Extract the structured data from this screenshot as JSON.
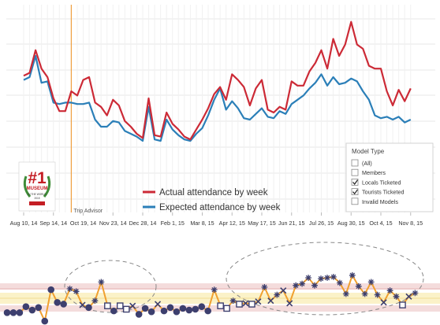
{
  "chart_data": [
    {
      "type": "line",
      "x_tick_labels": [
        "Aug 10, 14",
        "Sep 14, 14",
        "Oct 19, 14",
        "Nov 23, 14",
        "Dec 28, 14",
        "Feb 1, 15",
        "Mar 8, 15",
        "Apr 12, 15",
        "May 17, 15",
        "Jun 21, 15",
        "Jul 26, 15",
        "Aug 30, 15",
        "Oct 4, 15",
        "Nov 8, 15"
      ],
      "weeks_count": 66,
      "grid": true,
      "series": [
        {
          "name": "Actual attendance by week",
          "color": "#cc2a36",
          "values": [
            61,
            63,
            79,
            66,
            60,
            45,
            36,
            36,
            50,
            47,
            58,
            60,
            42,
            39,
            33,
            44,
            40,
            29,
            25,
            20,
            17,
            45,
            19,
            18,
            35,
            27,
            23,
            18,
            16,
            23,
            30,
            38,
            48,
            53,
            44,
            62,
            58,
            53,
            40,
            52,
            58,
            37,
            35,
            39,
            37,
            57,
            54,
            54,
            64,
            70,
            79,
            66,
            87,
            75,
            83,
            99,
            83,
            80,
            68,
            66,
            66,
            50,
            40,
            51,
            43,
            52
          ]
        },
        {
          "name": "Expected attendance by week",
          "color": "#2b7fb8",
          "values": [
            58,
            60,
            75,
            56,
            57,
            42,
            41,
            42,
            42,
            41,
            41,
            42,
            30,
            25,
            25,
            29,
            28,
            22,
            20,
            18,
            15,
            39,
            16,
            15,
            30,
            23,
            19,
            16,
            15,
            20,
            24,
            33,
            44,
            52,
            37,
            43,
            38,
            31,
            30,
            34,
            38,
            32,
            31,
            36,
            34,
            41,
            44,
            47,
            52,
            56,
            62,
            54,
            60,
            55,
            56,
            59,
            57,
            50,
            44,
            33,
            31,
            32,
            30,
            32,
            28,
            30
          ]
        }
      ],
      "annotations": [
        {
          "text": "Trip Advisor",
          "week": 8
        }
      ],
      "legend": {
        "position": "bottom-center",
        "entries": [
          "Actual attendance by week",
          "Expected attendance by week"
        ]
      },
      "filter_panel": {
        "title": "Model Type",
        "items": [
          {
            "label": "(All)",
            "checked": false
          },
          {
            "label": "Members",
            "checked": false
          },
          {
            "label": "Locals Ticketed",
            "checked": true
          },
          {
            "label": "Tourists Ticketed",
            "checked": true
          },
          {
            "label": "Invalid Models",
            "checked": false
          }
        ]
      },
      "logo": {
        "text": [
          "MUSEUM",
          "IN THE WORLD",
          "2015"
        ],
        "numeral": "#1"
      }
    },
    {
      "type": "line",
      "description": "control chart of weekly residuals",
      "bands": [
        "outer-pink",
        "inner-pink",
        "yellow-center"
      ],
      "highlighted_regions": 2,
      "points": [
        {
          "v": -1.6,
          "m": "dot"
        },
        {
          "v": -1.6,
          "m": "dot"
        },
        {
          "v": -1.6,
          "m": "dot"
        },
        {
          "v": -0.9,
          "m": "dot"
        },
        {
          "v": -1.3,
          "m": "dot"
        },
        {
          "v": -1.0,
          "m": "dot"
        },
        {
          "v": -2.6,
          "m": "dot"
        },
        {
          "v": 1.1,
          "m": "dot"
        },
        {
          "v": -0.4,
          "m": "dot"
        },
        {
          "v": -0.6,
          "m": "dot"
        },
        {
          "v": 1.2,
          "m": "star"
        },
        {
          "v": 0.9,
          "m": "star"
        },
        {
          "v": -0.7,
          "m": "x"
        },
        {
          "v": -1.0,
          "m": "dot"
        },
        {
          "v": -0.2,
          "m": "star"
        },
        {
          "v": 2.0,
          "m": "star"
        },
        {
          "v": -0.8,
          "m": "sq"
        },
        {
          "v": -1.4,
          "m": "dot"
        },
        {
          "v": -0.8,
          "m": "sq"
        },
        {
          "v": -1.2,
          "m": "sq"
        },
        {
          "v": -0.8,
          "m": "x"
        },
        {
          "v": -1.8,
          "m": "dot"
        },
        {
          "v": -1.1,
          "m": "dot"
        },
        {
          "v": -1.5,
          "m": "dot"
        },
        {
          "v": -0.6,
          "m": "x"
        },
        {
          "v": -1.4,
          "m": "dot"
        },
        {
          "v": -1.0,
          "m": "dot"
        },
        {
          "v": -1.5,
          "m": "dot"
        },
        {
          "v": -1.1,
          "m": "dot"
        },
        {
          "v": -1.3,
          "m": "dot"
        },
        {
          "v": -1.2,
          "m": "dot"
        },
        {
          "v": -0.9,
          "m": "dot"
        },
        {
          "v": -1.4,
          "m": "dot"
        },
        {
          "v": 1.1,
          "m": "star"
        },
        {
          "v": -0.8,
          "m": "sq"
        },
        {
          "v": -1.1,
          "m": "sq"
        },
        {
          "v": -0.2,
          "m": "star"
        },
        {
          "v": -0.6,
          "m": "sq"
        },
        {
          "v": -0.5,
          "m": "x"
        },
        {
          "v": -0.6,
          "m": "sq"
        },
        {
          "v": -0.3,
          "m": "x"
        },
        {
          "v": 1.4,
          "m": "star"
        },
        {
          "v": -0.2,
          "m": "x"
        },
        {
          "v": 0.5,
          "m": "star"
        },
        {
          "v": 1.0,
          "m": "x"
        },
        {
          "v": -0.5,
          "m": "x"
        },
        {
          "v": 1.6,
          "m": "star"
        },
        {
          "v": 1.8,
          "m": "star"
        },
        {
          "v": 2.5,
          "m": "star"
        },
        {
          "v": 1.6,
          "m": "star"
        },
        {
          "v": 2.4,
          "m": "star"
        },
        {
          "v": 2.5,
          "m": "star"
        },
        {
          "v": 2.6,
          "m": "star"
        },
        {
          "v": 1.9,
          "m": "star"
        },
        {
          "v": 0.6,
          "m": "star"
        },
        {
          "v": 2.8,
          "m": "star"
        },
        {
          "v": 1.5,
          "m": "star"
        },
        {
          "v": 0.6,
          "m": "star"
        },
        {
          "v": 2.0,
          "m": "star"
        },
        {
          "v": 0.5,
          "m": "star"
        },
        {
          "v": -0.4,
          "m": "x"
        },
        {
          "v": 1.0,
          "m": "star"
        },
        {
          "v": 0.3,
          "m": "star"
        },
        {
          "v": -0.7,
          "m": "sq"
        },
        {
          "v": 0.3,
          "m": "x"
        },
        {
          "v": 0.7,
          "m": "star"
        }
      ],
      "colors": {
        "line": "#f0a030",
        "marker": "#3d3f6e",
        "pink_band": "#f4dcdc",
        "yellow_band": "#fbf2c8"
      }
    }
  ]
}
